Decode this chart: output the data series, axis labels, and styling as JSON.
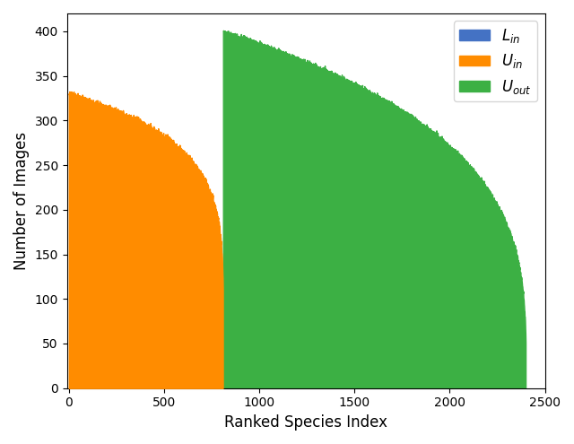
{
  "title": "",
  "xlabel": "Ranked Species Index",
  "ylabel": "Number of Images",
  "xlim": [
    -10,
    2500
  ],
  "ylim": [
    0,
    420
  ],
  "yticks": [
    0,
    50,
    100,
    150,
    200,
    250,
    300,
    350,
    400
  ],
  "xticks": [
    0,
    500,
    1000,
    1500,
    2000,
    2500
  ],
  "L_in_n": 810,
  "U_in_n": 810,
  "U_out_start": 810,
  "U_out_n": 1590,
  "color_Lin": "#4472c4",
  "color_Uin": "#ff8c00",
  "color_Uout": "#3cb044",
  "legend_labels": [
    "$L_{in}$",
    "$U_{in}$",
    "$U_{out}$"
  ],
  "figsize": [
    6.4,
    4.95
  ],
  "dpi": 100,
  "uin_start": 330,
  "uin_end": 110,
  "uin_power": 0.42,
  "uout_start": 400,
  "uout_end": 50,
  "uout_power": 0.55,
  "lin_max": 60,
  "lin_min": 10,
  "lin_decay": 250
}
